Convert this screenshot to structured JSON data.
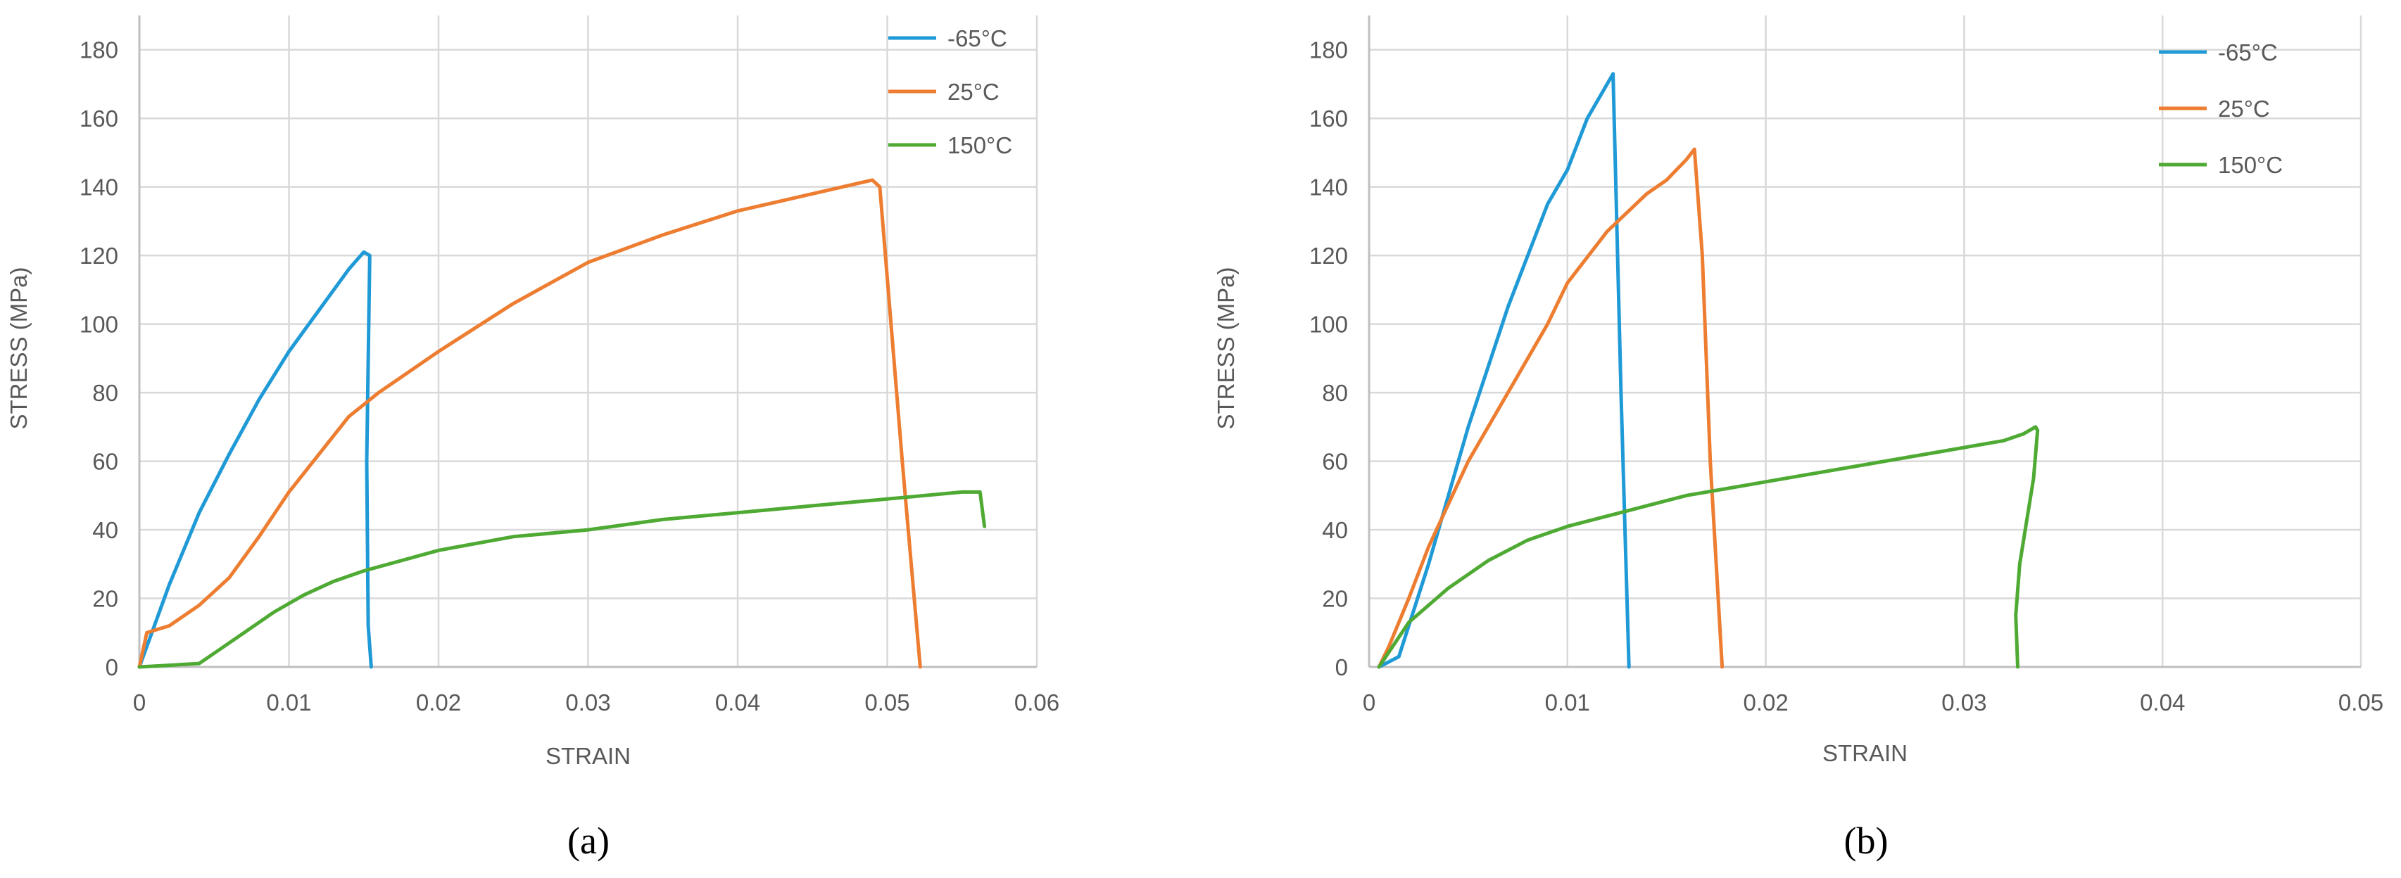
{
  "chart_data": [
    {
      "panel_label": "(a)",
      "type": "line",
      "xlabel": "STRAIN",
      "ylabel": "STRESS (MPa)",
      "xlim": [
        0,
        0.06
      ],
      "ylim": [
        0,
        190
      ],
      "x_ticks": [
        0,
        0.01,
        0.02,
        0.03,
        0.04,
        0.05,
        0.06
      ],
      "x_tick_labels": [
        "0",
        "0.01",
        "0.02",
        "0.03",
        "0.04",
        "0.05",
        "0.06"
      ],
      "y_ticks": [
        0,
        20,
        40,
        60,
        80,
        100,
        120,
        140,
        160,
        180
      ],
      "y_tick_labels": [
        "0",
        "20",
        "40",
        "60",
        "80",
        "100",
        "120",
        "140",
        "160",
        "180"
      ],
      "grid": true,
      "legend_position": "top-right",
      "series": [
        {
          "name": "-65°C",
          "color": "#1f9ad6",
          "x": [
            0,
            0.001,
            0.002,
            0.004,
            0.006,
            0.008,
            0.01,
            0.012,
            0.014,
            0.015,
            0.0154,
            0.0152,
            0.0153,
            0.0155
          ],
          "y": [
            0,
            12,
            24,
            45,
            62,
            78,
            92,
            104,
            116,
            121,
            120,
            60,
            12,
            0
          ]
        },
        {
          "name": "25°C",
          "color": "#ed7d31",
          "x": [
            0,
            0.0005,
            0.002,
            0.004,
            0.006,
            0.008,
            0.01,
            0.012,
            0.014,
            0.016,
            0.02,
            0.025,
            0.03,
            0.035,
            0.04,
            0.045,
            0.048,
            0.049,
            0.0495,
            0.051,
            0.0522
          ],
          "y": [
            0,
            10,
            12,
            18,
            26,
            38,
            51,
            62,
            73,
            80,
            92,
            106,
            118,
            126,
            133,
            138,
            141,
            142,
            140,
            60,
            0
          ]
        },
        {
          "name": "150°C",
          "color": "#4faa34",
          "x": [
            0,
            0.002,
            0.004,
            0.005,
            0.007,
            0.009,
            0.011,
            0.013,
            0.015,
            0.02,
            0.025,
            0.03,
            0.035,
            0.04,
            0.045,
            0.05,
            0.055,
            0.0562,
            0.0565
          ],
          "y": [
            0,
            0.5,
            1,
            4,
            10,
            16,
            21,
            25,
            28,
            34,
            38,
            40,
            43,
            45,
            47,
            49,
            51,
            51,
            41
          ]
        }
      ]
    },
    {
      "panel_label": "(b)",
      "type": "line",
      "xlabel": "STRAIN",
      "ylabel": "STRESS (MPa)",
      "xlim": [
        0,
        0.05
      ],
      "ylim": [
        0,
        190
      ],
      "x_ticks": [
        0,
        0.01,
        0.02,
        0.03,
        0.04,
        0.05
      ],
      "x_tick_labels": [
        "0",
        "0.01",
        "0.02",
        "0.03",
        "0.04",
        "0.05"
      ],
      "y_ticks": [
        0,
        20,
        40,
        60,
        80,
        100,
        120,
        140,
        160,
        180
      ],
      "y_tick_labels": [
        "0",
        "20",
        "40",
        "60",
        "80",
        "100",
        "120",
        "140",
        "160",
        "180"
      ],
      "grid": true,
      "legend_position": "top-right",
      "series": [
        {
          "name": "-65°C",
          "color": "#1f9ad6",
          "x": [
            0.0005,
            0.0015,
            0.003,
            0.005,
            0.007,
            0.009,
            0.01,
            0.011,
            0.012,
            0.0123,
            0.0127,
            0.0131
          ],
          "y": [
            0,
            3,
            30,
            70,
            105,
            135,
            145,
            160,
            170,
            173,
            80,
            0
          ]
        },
        {
          "name": "25°C",
          "color": "#ed7d31",
          "x": [
            0.0005,
            0.001,
            0.002,
            0.003,
            0.005,
            0.007,
            0.009,
            0.01,
            0.012,
            0.014,
            0.015,
            0.016,
            0.0164,
            0.0168,
            0.0172,
            0.0178
          ],
          "y": [
            0,
            6,
            20,
            35,
            60,
            80,
            100,
            112,
            127,
            138,
            142,
            148,
            151,
            120,
            60,
            0
          ]
        },
        {
          "name": "150°C",
          "color": "#4faa34",
          "x": [
            0.0005,
            0.002,
            0.004,
            0.006,
            0.008,
            0.01,
            0.012,
            0.014,
            0.016,
            0.018,
            0.02,
            0.025,
            0.03,
            0.032,
            0.033,
            0.0336,
            0.0337,
            0.0335,
            0.0328,
            0.0326,
            0.0327
          ],
          "y": [
            0,
            13,
            23,
            31,
            37,
            41,
            44,
            47,
            50,
            52,
            54,
            59,
            64,
            66,
            68,
            70,
            69,
            55,
            30,
            15,
            0
          ]
        }
      ]
    }
  ]
}
